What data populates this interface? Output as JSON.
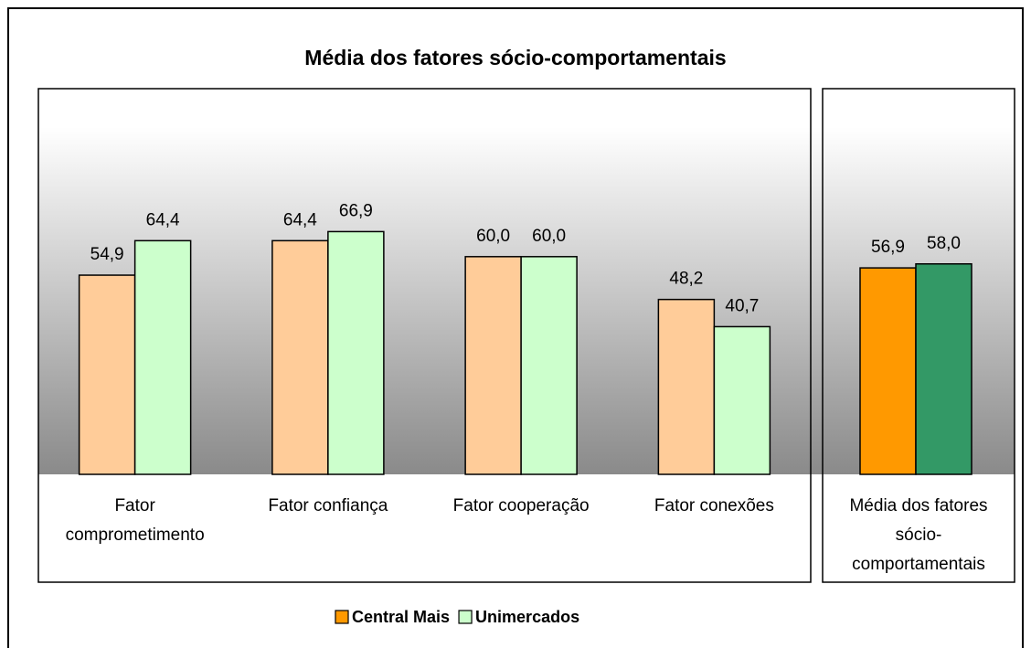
{
  "chart_data": {
    "type": "bar",
    "title": "Média dos fatores sócio-comportamentais",
    "categories": [
      "Fator comprometimento",
      "Fator confiança",
      "Fator cooperação",
      "Fator conexões",
      "Média dos fatores sócio-comportamentais"
    ],
    "series": [
      {
        "name": "Central Mais",
        "color": "#ff9900",
        "colors": [
          "#ffcc99",
          "#ffcc99",
          "#ffcc99",
          "#ffcc99",
          "#ff9900"
        ],
        "values": [
          54.9,
          64.4,
          60.0,
          48.2,
          56.9
        ],
        "value_labels": [
          "54,9",
          "64,4",
          "60,0",
          "48,2",
          "56,9"
        ]
      },
      {
        "name": "Unimercados",
        "color": "#ccffcc",
        "colors": [
          "#ccffcc",
          "#ccffcc",
          "#ccffcc",
          "#ccffcc",
          "#339966"
        ],
        "values": [
          64.4,
          66.9,
          60.0,
          40.7,
          58.0
        ],
        "value_labels": [
          "64,4",
          "66,9",
          "60,0",
          "40,7",
          "58,0"
        ]
      }
    ],
    "ylim": [
      0,
      106.3
    ]
  }
}
